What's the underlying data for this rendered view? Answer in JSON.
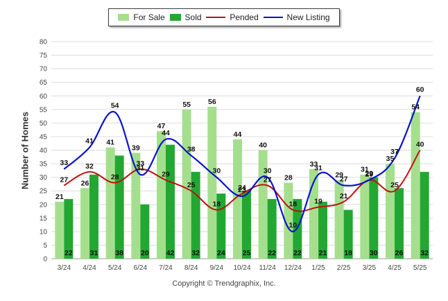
{
  "legend": {
    "items": [
      {
        "label": "For Sale",
        "kind": "box",
        "color": "#a5df8d"
      },
      {
        "label": "Sold",
        "kind": "box",
        "color": "#22a832"
      },
      {
        "label": "Pended",
        "kind": "line",
        "color": "#c0100f"
      },
      {
        "label": "New Listing",
        "kind": "line",
        "color": "#0a13c8"
      }
    ]
  },
  "footer": {
    "copyright": "Copyright © Trendgraphix, Inc."
  },
  "chart_data": {
    "type": "bar",
    "ylabel": "Number of Homes",
    "xlabel": "",
    "ylim": [
      0,
      80
    ],
    "ytick_step": 5,
    "grid": true,
    "legend_position": "top",
    "categories": [
      "3/24",
      "4/24",
      "5/24",
      "6/24",
      "7/24",
      "8/24",
      "9/24",
      "10/24",
      "11/24",
      "12/24",
      "1/25",
      "2/25",
      "3/25",
      "4/25",
      "5/25"
    ],
    "series": [
      {
        "name": "For Sale",
        "type": "bar",
        "color": "#a5df8d",
        "values": [
          21,
          26,
          41,
          39,
          47,
          55,
          56,
          44,
          40,
          28,
          33,
          29,
          31,
          35,
          54
        ]
      },
      {
        "name": "Sold",
        "type": "bar",
        "color": "#22a832",
        "values": [
          22,
          31,
          38,
          20,
          42,
          32,
          24,
          25,
          22,
          22,
          21,
          18,
          30,
          26,
          32
        ]
      },
      {
        "name": "Pended",
        "type": "line",
        "color": "#c0100f",
        "values": [
          27,
          32,
          28,
          33,
          29,
          25,
          18,
          24,
          27,
          18,
          19,
          21,
          29,
          25,
          40
        ]
      },
      {
        "name": "New Listing",
        "type": "line",
        "color": "#0a13c8",
        "values": [
          33,
          41,
          54,
          31,
          44,
          38,
          30,
          23,
          30,
          10,
          31,
          27,
          29,
          37,
          60
        ]
      }
    ]
  }
}
